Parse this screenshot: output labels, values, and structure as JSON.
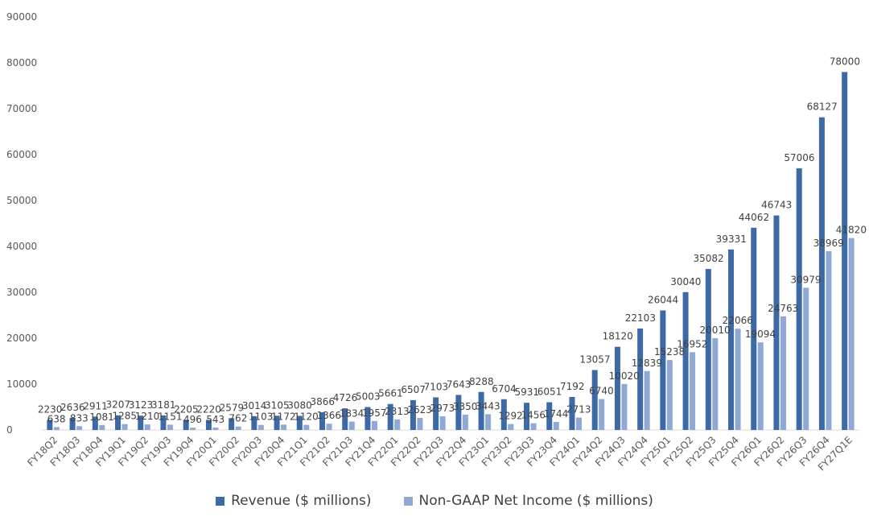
{
  "chart_data": {
    "type": "bar",
    "title": "",
    "xlabel": "",
    "ylabel": "",
    "ylim": [
      0,
      90000
    ],
    "yticks": [
      0,
      10000,
      20000,
      30000,
      40000,
      50000,
      60000,
      70000,
      80000,
      90000
    ],
    "grid": false,
    "legend_position": "bottom",
    "categories": [
      "FY18Q2",
      "FY18Q3",
      "FY18Q4",
      "FY19Q1",
      "FY19Q2",
      "FY19Q3",
      "FY19Q4",
      "FY20Q1",
      "FY20Q2",
      "FY20Q3",
      "FY20Q4",
      "FY21Q1",
      "FY21Q2",
      "FY21Q3",
      "FY21Q4",
      "FY22Q1",
      "FY22Q2",
      "FY22Q3",
      "FY22Q4",
      "FY23Q1",
      "FY23Q2",
      "FY23Q3",
      "FY23Q4",
      "FY24Q1",
      "FY24Q2",
      "FY24Q3",
      "FY24Q4",
      "FY25Q1",
      "FY25Q2",
      "FY25Q3",
      "FY25Q4",
      "FY26Q1",
      "FY26Q2",
      "FY26Q3",
      "FY26Q4",
      "FY27Q1E"
    ],
    "series": [
      {
        "name": "Revenue ($ millions)",
        "color": "#3d6aa6",
        "values": [
          2230,
          2636,
          2911,
          3207,
          3123,
          3181,
          2205,
          2220,
          2579,
          3014,
          3105,
          3080,
          3866,
          4726,
          5003,
          5661,
          6507,
          7103,
          7643,
          8288,
          6704,
          5931,
          6051,
          7192,
          13057,
          18120,
          22103,
          26044,
          30040,
          35082,
          39331,
          44062,
          46743,
          57006,
          68127,
          78000
        ]
      },
      {
        "name": "Non-GAAP Net Income ($ millions)",
        "color": "#8fa8d4",
        "values": [
          638,
          833,
          1081,
          1285,
          1210,
          1151,
          496,
          543,
          762,
          1103,
          1172,
          1120,
          1366,
          1834,
          1957,
          2313,
          2623,
          2973,
          3350,
          3443,
          1292,
          1456,
          1744,
          2713,
          6740,
          10020,
          12839,
          15238,
          16952,
          20010,
          22066,
          19094,
          24763,
          30979,
          38969,
          41820
        ]
      }
    ]
  }
}
